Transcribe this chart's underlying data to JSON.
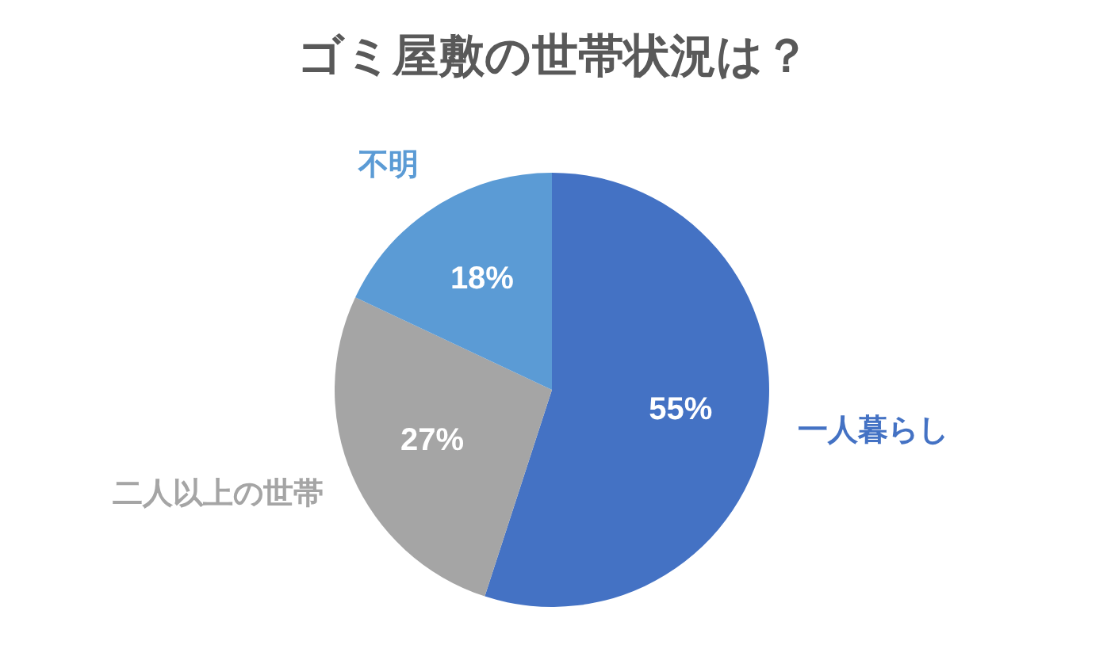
{
  "chart_data": {
    "type": "pie",
    "title": "ゴミ屋敷の世帯状況は？",
    "categories": [
      "一人暮らし",
      "二人以上の世帯",
      "不明"
    ],
    "values": [
      55,
      27,
      18
    ],
    "colors": [
      "#4472c4",
      "#a5a5a5",
      "#5b9bd5"
    ],
    "value_labels": [
      "55%",
      "27%",
      "18%"
    ]
  }
}
